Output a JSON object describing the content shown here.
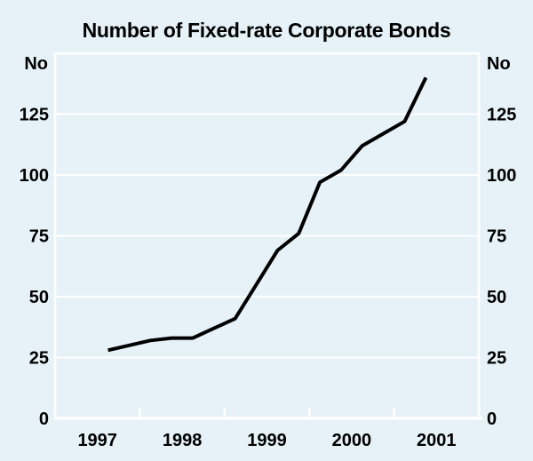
{
  "title": "Number of Fixed-rate Corporate Bonds",
  "chart_data": {
    "type": "line",
    "title": "Number of Fixed-rate Corporate Bonds",
    "unit_left": "No",
    "unit_right": "No",
    "series_name": "Number of fixed-rate corporate bonds",
    "x_quarters": [
      "1997 Q3",
      "1997 Q4",
      "1998 Q1",
      "1998 Q2",
      "1998 Q3",
      "1998 Q4",
      "1999 Q1",
      "1999 Q2",
      "1999 Q3",
      "1999 Q4",
      "2000 Q1",
      "2000 Q2",
      "2000 Q3",
      "2000 Q4",
      "2001 Q1",
      "2001 Q2"
    ],
    "x": [
      1997.625,
      1997.875,
      1998.125,
      1998.375,
      1998.625,
      1998.875,
      1999.125,
      1999.375,
      1999.625,
      1999.875,
      2000.125,
      2000.375,
      2000.625,
      2000.875,
      2001.125,
      2001.375
    ],
    "values": [
      28,
      30,
      32,
      33,
      33,
      37,
      41,
      55,
      69,
      76,
      97,
      102,
      112,
      117,
      122,
      140
    ],
    "ylim": [
      0,
      150
    ],
    "yticks": [
      0,
      25,
      50,
      75,
      100,
      125
    ],
    "xlim": [
      1997,
      2002
    ],
    "x_boundary_ticks": [
      1998,
      1999,
      2000,
      2001
    ],
    "xtick_labels": [
      {
        "label": "1997",
        "x": 1997.5
      },
      {
        "label": "1998",
        "x": 1998.5
      },
      {
        "label": "1999",
        "x": 1999.5
      },
      {
        "label": "2000",
        "x": 2000.5
      },
      {
        "label": "2001",
        "x": 2001.5
      }
    ],
    "grid": "on",
    "legend": "none",
    "colors": {
      "background": "#e6f2f8",
      "grid": "#ffffff",
      "line": "#000000",
      "text": "#000000"
    }
  }
}
